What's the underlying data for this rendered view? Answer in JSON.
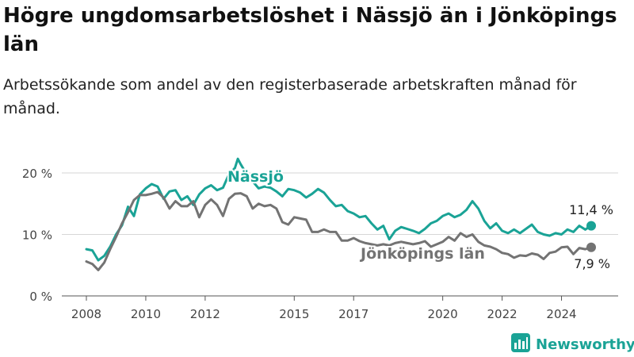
{
  "title": "Högre ungdomsarbetslöshet i Nässjö än i Jönköpings län",
  "subtitle": "Arbetssökande som andel av den registerbaserade arbetskraften månad för månad.",
  "brand": {
    "name": "Newsworthy"
  },
  "colors": {
    "nassjo": "#1aa396",
    "lan": "#737373",
    "grid": "#d6d6d6",
    "axis": "#555555"
  },
  "chart_data": {
    "type": "line",
    "xlabel": "",
    "ylabel": "",
    "ylim": [
      0,
      22
    ],
    "y_ticks": [
      0,
      10,
      20
    ],
    "y_tick_labels": [
      "0 %",
      "10 %",
      "20 %"
    ],
    "x_ticks": [
      2008,
      2010,
      2012,
      2015,
      2017,
      2020,
      2022,
      2024
    ],
    "x_tick_labels": [
      "2008",
      "2010",
      "2012",
      "2015",
      "2017",
      "2020",
      "2022",
      "2024"
    ],
    "grid": true,
    "series": [
      {
        "name": "Nässjö",
        "color": "#1aa396",
        "end_label": "11,4 %",
        "points": [
          [
            2008.0,
            7.6
          ],
          [
            2008.2,
            7.4
          ],
          [
            2008.4,
            5.8
          ],
          [
            2008.6,
            6.5
          ],
          [
            2008.8,
            8.0
          ],
          [
            2009.0,
            10.0
          ],
          [
            2009.2,
            11.5
          ],
          [
            2009.4,
            14.5
          ],
          [
            2009.6,
            13.0
          ],
          [
            2009.8,
            16.5
          ],
          [
            2010.0,
            17.5
          ],
          [
            2010.2,
            18.2
          ],
          [
            2010.4,
            17.8
          ],
          [
            2010.6,
            15.8
          ],
          [
            2010.8,
            17.0
          ],
          [
            2011.0,
            17.2
          ],
          [
            2011.2,
            15.6
          ],
          [
            2011.4,
            16.2
          ],
          [
            2011.6,
            14.8
          ],
          [
            2011.8,
            16.5
          ],
          [
            2012.0,
            17.5
          ],
          [
            2012.2,
            18.0
          ],
          [
            2012.4,
            17.2
          ],
          [
            2012.6,
            17.6
          ],
          [
            2012.8,
            19.8
          ],
          [
            2013.0,
            20.8
          ],
          [
            2013.1,
            22.3
          ],
          [
            2013.2,
            21.4
          ],
          [
            2013.4,
            19.8
          ],
          [
            2013.8,
            17.5
          ],
          [
            2014.0,
            17.8
          ],
          [
            2014.2,
            17.6
          ],
          [
            2014.4,
            17.0
          ],
          [
            2014.6,
            16.2
          ],
          [
            2014.8,
            17.4
          ],
          [
            2015.0,
            17.2
          ],
          [
            2015.2,
            16.8
          ],
          [
            2015.4,
            16.0
          ],
          [
            2015.6,
            16.6
          ],
          [
            2015.8,
            17.4
          ],
          [
            2016.0,
            16.8
          ],
          [
            2016.2,
            15.6
          ],
          [
            2016.4,
            14.6
          ],
          [
            2016.6,
            14.8
          ],
          [
            2016.8,
            13.8
          ],
          [
            2017.0,
            13.4
          ],
          [
            2017.2,
            12.8
          ],
          [
            2017.4,
            13.0
          ],
          [
            2017.6,
            11.8
          ],
          [
            2017.8,
            10.8
          ],
          [
            2018.0,
            11.4
          ],
          [
            2018.2,
            9.2
          ],
          [
            2018.4,
            10.6
          ],
          [
            2018.6,
            11.2
          ],
          [
            2018.8,
            10.9
          ],
          [
            2019.0,
            10.6
          ],
          [
            2019.2,
            10.2
          ],
          [
            2019.4,
            10.9
          ],
          [
            2019.6,
            11.8
          ],
          [
            2019.8,
            12.2
          ],
          [
            2020.0,
            13.0
          ],
          [
            2020.2,
            13.4
          ],
          [
            2020.4,
            12.8
          ],
          [
            2020.6,
            13.2
          ],
          [
            2020.8,
            14.0
          ],
          [
            2021.0,
            15.4
          ],
          [
            2021.2,
            14.2
          ],
          [
            2021.4,
            12.2
          ],
          [
            2021.6,
            11.0
          ],
          [
            2021.8,
            11.8
          ],
          [
            2022.0,
            10.6
          ],
          [
            2022.2,
            10.2
          ],
          [
            2022.4,
            10.8
          ],
          [
            2022.6,
            10.2
          ],
          [
            2022.8,
            10.9
          ],
          [
            2023.0,
            11.6
          ],
          [
            2023.2,
            10.4
          ],
          [
            2023.4,
            10.0
          ],
          [
            2023.6,
            9.8
          ],
          [
            2023.8,
            10.2
          ],
          [
            2024.0,
            10.0
          ],
          [
            2024.2,
            10.8
          ],
          [
            2024.4,
            10.4
          ],
          [
            2024.6,
            11.4
          ],
          [
            2024.8,
            10.8
          ],
          [
            2025.0,
            11.4
          ]
        ]
      },
      {
        "name": "Jönköpings län",
        "color": "#737373",
        "end_label": "7,9 %",
        "points": [
          [
            2008.0,
            5.6
          ],
          [
            2008.2,
            5.2
          ],
          [
            2008.4,
            4.2
          ],
          [
            2008.6,
            5.4
          ],
          [
            2008.8,
            7.6
          ],
          [
            2009.0,
            9.6
          ],
          [
            2009.2,
            11.8
          ],
          [
            2009.4,
            13.6
          ],
          [
            2009.6,
            15.6
          ],
          [
            2009.8,
            16.4
          ],
          [
            2010.0,
            16.4
          ],
          [
            2010.2,
            16.6
          ],
          [
            2010.4,
            16.9
          ],
          [
            2010.6,
            16.0
          ],
          [
            2010.8,
            14.2
          ],
          [
            2011.0,
            15.4
          ],
          [
            2011.2,
            14.6
          ],
          [
            2011.4,
            14.6
          ],
          [
            2011.6,
            15.4
          ],
          [
            2011.8,
            12.8
          ],
          [
            2012.0,
            14.8
          ],
          [
            2012.2,
            15.7
          ],
          [
            2012.4,
            14.8
          ],
          [
            2012.6,
            13.0
          ],
          [
            2012.8,
            15.8
          ],
          [
            2013.0,
            16.6
          ],
          [
            2013.2,
            16.7
          ],
          [
            2013.4,
            16.2
          ],
          [
            2013.6,
            14.2
          ],
          [
            2013.8,
            15.0
          ],
          [
            2014.0,
            14.6
          ],
          [
            2014.2,
            14.8
          ],
          [
            2014.4,
            14.2
          ],
          [
            2014.6,
            12.0
          ],
          [
            2014.8,
            11.6
          ],
          [
            2015.0,
            12.8
          ],
          [
            2015.2,
            12.6
          ],
          [
            2015.4,
            12.4
          ],
          [
            2015.6,
            10.4
          ],
          [
            2015.8,
            10.4
          ],
          [
            2016.0,
            10.8
          ],
          [
            2016.2,
            10.4
          ],
          [
            2016.4,
            10.4
          ],
          [
            2016.6,
            9.0
          ],
          [
            2016.8,
            9.0
          ],
          [
            2017.0,
            9.4
          ],
          [
            2017.2,
            8.9
          ],
          [
            2017.4,
            8.6
          ],
          [
            2017.6,
            8.4
          ],
          [
            2017.8,
            8.2
          ],
          [
            2018.0,
            8.4
          ],
          [
            2018.2,
            8.2
          ],
          [
            2018.4,
            8.6
          ],
          [
            2018.6,
            8.8
          ],
          [
            2018.8,
            8.6
          ],
          [
            2019.0,
            8.4
          ],
          [
            2019.2,
            8.6
          ],
          [
            2019.4,
            8.9
          ],
          [
            2019.6,
            8.0
          ],
          [
            2019.8,
            8.4
          ],
          [
            2020.0,
            8.8
          ],
          [
            2020.2,
            9.6
          ],
          [
            2020.4,
            9.0
          ],
          [
            2020.6,
            10.2
          ],
          [
            2020.8,
            9.6
          ],
          [
            2021.0,
            10.0
          ],
          [
            2021.2,
            8.8
          ],
          [
            2021.4,
            8.2
          ],
          [
            2021.6,
            8.0
          ],
          [
            2021.8,
            7.6
          ],
          [
            2022.0,
            7.0
          ],
          [
            2022.2,
            6.8
          ],
          [
            2022.4,
            6.2
          ],
          [
            2022.6,
            6.6
          ],
          [
            2022.8,
            6.5
          ],
          [
            2023.0,
            6.9
          ],
          [
            2023.2,
            6.7
          ],
          [
            2023.4,
            6.0
          ],
          [
            2023.6,
            7.0
          ],
          [
            2023.8,
            7.2
          ],
          [
            2024.0,
            7.9
          ],
          [
            2024.2,
            8.0
          ],
          [
            2024.4,
            6.8
          ],
          [
            2024.6,
            7.8
          ],
          [
            2024.8,
            7.6
          ],
          [
            2025.0,
            7.9
          ]
        ]
      }
    ]
  }
}
